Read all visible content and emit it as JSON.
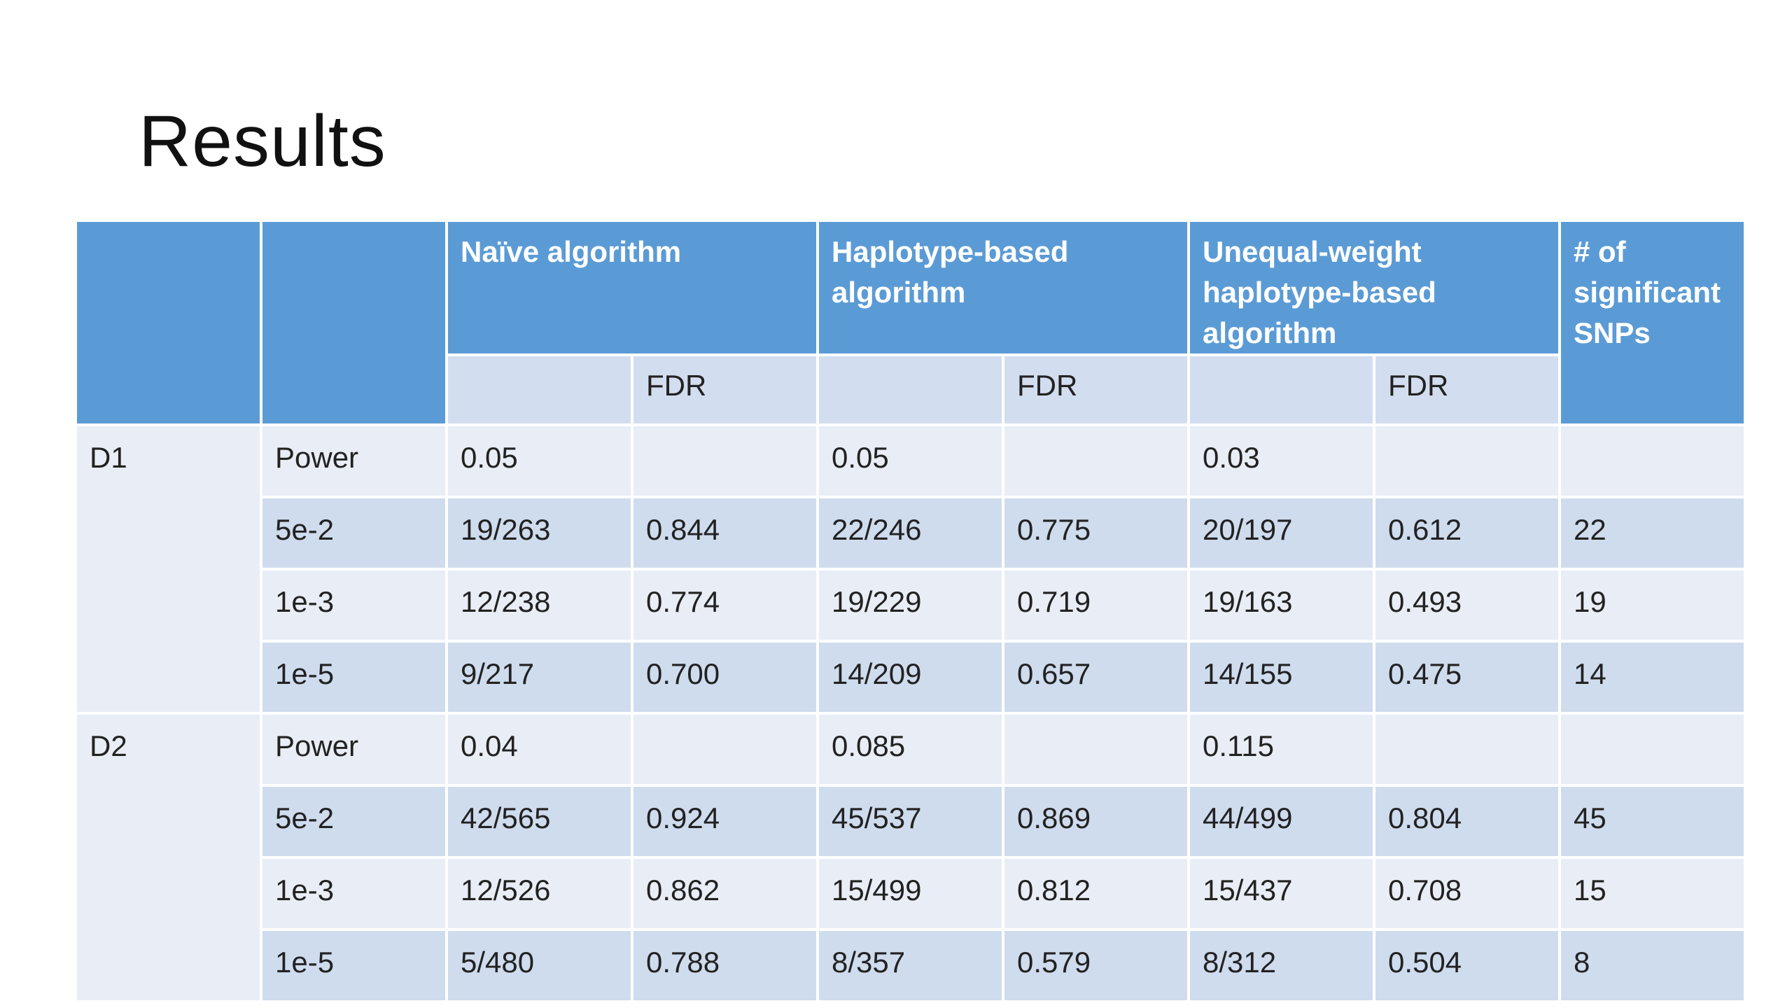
{
  "title": "Results",
  "table": {
    "headers": {
      "naive": "Naïve algorithm",
      "haplotype": "Haplotype-based algorithm",
      "unequal": "Unequal-weight haplotype-based algorithm",
      "sig_snps": "# of significant SNPs",
      "fdr": "FDR"
    },
    "datasets": [
      {
        "label": "D1",
        "rows": [
          {
            "threshold": "Power",
            "naive": "0.05",
            "naive_fdr": "",
            "hap": "0.05",
            "hap_fdr": "",
            "uw": "0.03",
            "uw_fdr": "",
            "snps": ""
          },
          {
            "threshold": "5e-2",
            "naive": "19/263",
            "naive_fdr": "0.844",
            "hap": "22/246",
            "hap_fdr": "0.775",
            "uw": "20/197",
            "uw_fdr": "0.612",
            "snps": "22"
          },
          {
            "threshold": "1e-3",
            "naive": "12/238",
            "naive_fdr": "0.774",
            "hap": "19/229",
            "hap_fdr": "0.719",
            "uw": "19/163",
            "uw_fdr": "0.493",
            "snps": "19"
          },
          {
            "threshold": "1e-5",
            "naive": "9/217",
            "naive_fdr": "0.700",
            "hap": "14/209",
            "hap_fdr": "0.657",
            "uw": "14/155",
            "uw_fdr": "0.475",
            "snps": "14"
          }
        ]
      },
      {
        "label": "D2",
        "rows": [
          {
            "threshold": "Power",
            "naive": "0.04",
            "naive_fdr": "",
            "hap": "0.085",
            "hap_fdr": "",
            "uw": "0.115",
            "uw_fdr": "",
            "snps": ""
          },
          {
            "threshold": "5e-2",
            "naive": "42/565",
            "naive_fdr": "0.924",
            "hap": "45/537",
            "hap_fdr": "0.869",
            "uw": "44/499",
            "uw_fdr": "0.804",
            "snps": "45"
          },
          {
            "threshold": "1e-3",
            "naive": "12/526",
            "naive_fdr": "0.862",
            "hap": "15/499",
            "hap_fdr": "0.812",
            "uw": "15/437",
            "uw_fdr": "0.708",
            "snps": "15"
          },
          {
            "threshold": "1e-5",
            "naive": "5/480",
            "naive_fdr": "0.788",
            "hap": "8/357",
            "hap_fdr": "0.579",
            "uw": "8/312",
            "uw_fdr": "0.504",
            "snps": "8"
          }
        ]
      }
    ]
  },
  "colors": {
    "header": "#5b9bd5",
    "subheader": "#d2deef",
    "row_light": "#e9edf6",
    "row_dark": "#cfdcee"
  }
}
